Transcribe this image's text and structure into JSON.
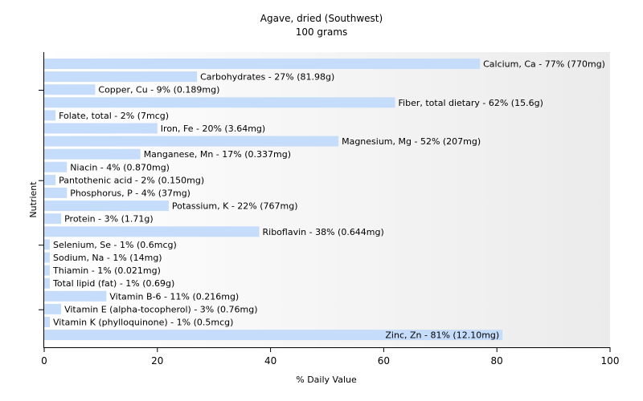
{
  "chart_data": {
    "type": "bar",
    "orientation": "horizontal",
    "title": "Agave, dried (Southwest)",
    "subtitle": "100 grams",
    "xlabel": "% Daily Value",
    "ylabel": "Nutrient",
    "xlim": [
      0,
      100
    ],
    "x_ticks": [
      0,
      20,
      40,
      60,
      80,
      100
    ],
    "grid": false,
    "bar_color": "#c6dcfb",
    "categories": [
      "Calcium, Ca",
      "Carbohydrates",
      "Copper, Cu",
      "Fiber, total dietary",
      "Folate, total",
      "Iron, Fe",
      "Magnesium, Mg",
      "Manganese, Mn",
      "Niacin",
      "Pantothenic acid",
      "Phosphorus, P",
      "Potassium, K",
      "Protein",
      "Riboflavin",
      "Selenium, Se",
      "Sodium, Na",
      "Thiamin",
      "Total lipid (fat)",
      "Vitamin B-6",
      "Vitamin E (alpha-tocopherol)",
      "Vitamin K (phylloquinone)",
      "Zinc, Zn"
    ],
    "values": [
      77,
      27,
      9,
      62,
      2,
      20,
      52,
      17,
      4,
      2,
      4,
      22,
      3,
      38,
      1,
      1,
      1,
      1,
      11,
      3,
      1,
      81
    ],
    "labels": [
      "Calcium, Ca - 77% (770mg)",
      "Carbohydrates - 27% (81.98g)",
      "Copper, Cu - 9% (0.189mg)",
      "Fiber, total dietary - 62% (15.6g)",
      "Folate, total - 2% (7mcg)",
      "Iron, Fe - 20% (3.64mg)",
      "Magnesium, Mg - 52% (207mg)",
      "Manganese, Mn - 17% (0.337mg)",
      "Niacin - 4% (0.870mg)",
      "Pantothenic acid - 2% (0.150mg)",
      "Phosphorus, P - 4% (37mg)",
      "Potassium, K - 22% (767mg)",
      "Protein - 3% (1.71g)",
      "Riboflavin - 38% (0.644mg)",
      "Selenium, Se - 1% (0.6mcg)",
      "Sodium, Na - 1% (14mg)",
      "Thiamin - 1% (0.021mg)",
      "Total lipid (fat) - 1% (0.69g)",
      "Vitamin B-6 - 11% (0.216mg)",
      "Vitamin E (alpha-tocopherol) - 3% (0.76mg)",
      "Vitamin K (phylloquinone) - 1% (0.5mcg)",
      "Zinc, Zn - 81% (12.10mg)"
    ],
    "label_inside": [
      false,
      false,
      false,
      false,
      false,
      false,
      false,
      false,
      false,
      false,
      false,
      false,
      false,
      false,
      false,
      false,
      false,
      false,
      false,
      false,
      false,
      true
    ]
  }
}
